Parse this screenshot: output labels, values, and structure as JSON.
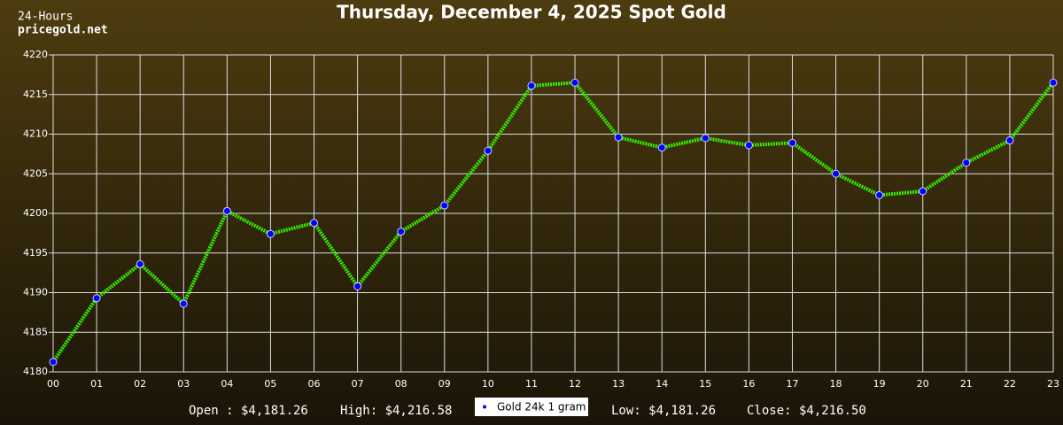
{
  "chart_data": {
    "type": "line",
    "title": "Thursday, December 4, 2025 Spot Gold",
    "site_labels": [
      "24-Hours",
      "pricegold.net"
    ],
    "categories": [
      "00",
      "01",
      "02",
      "03",
      "04",
      "05",
      "06",
      "07",
      "08",
      "09",
      "10",
      "11",
      "12",
      "13",
      "14",
      "15",
      "16",
      "17",
      "18",
      "19",
      "20",
      "21",
      "22",
      "23"
    ],
    "series": [
      {
        "name": "Gold 24k 1 gram",
        "color": "#33ee00",
        "marker_color": "#0000ff",
        "values": [
          4181.26,
          4189.3,
          4193.6,
          4188.6,
          4200.3,
          4197.4,
          4198.8,
          4190.8,
          4197.7,
          4201.0,
          4207.9,
          4216.1,
          4216.5,
          4209.6,
          4208.3,
          4209.5,
          4208.6,
          4208.9,
          4205.0,
          4202.3,
          4202.8,
          4206.4,
          4209.2,
          4216.5
        ]
      }
    ],
    "ylim": [
      4180,
      4220
    ],
    "yticks": [
      4180,
      4185,
      4190,
      4195,
      4200,
      4205,
      4210,
      4215,
      4220
    ],
    "grid": true,
    "summary": [
      "Open : $4,181.26",
      "High: $4,216.58",
      "Low: $4,181.26",
      "Close: $4,216.50"
    ]
  }
}
